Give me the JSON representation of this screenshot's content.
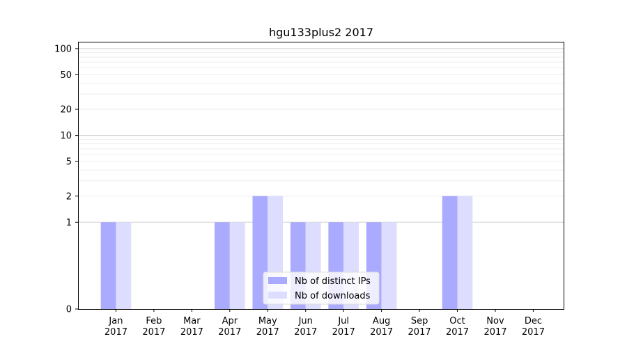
{
  "chart_data": {
    "type": "bar",
    "title": "hgu133plus2 2017",
    "xlabel": "",
    "ylabel": "",
    "y_scale": "symlog",
    "ylim": [
      0,
      120
    ],
    "categories": [
      {
        "month": "Jan",
        "year": "2017"
      },
      {
        "month": "Feb",
        "year": "2017"
      },
      {
        "month": "Mar",
        "year": "2017"
      },
      {
        "month": "Apr",
        "year": "2017"
      },
      {
        "month": "May",
        "year": "2017"
      },
      {
        "month": "Jun",
        "year": "2017"
      },
      {
        "month": "Jul",
        "year": "2017"
      },
      {
        "month": "Aug",
        "year": "2017"
      },
      {
        "month": "Sep",
        "year": "2017"
      },
      {
        "month": "Oct",
        "year": "2017"
      },
      {
        "month": "Nov",
        "year": "2017"
      },
      {
        "month": "Dec",
        "year": "2017"
      }
    ],
    "series": [
      {
        "name": "Nb of distinct IPs",
        "color": "#aaaaff",
        "values": [
          1,
          0,
          0,
          1,
          2,
          1,
          1,
          1,
          0,
          2,
          0,
          0
        ]
      },
      {
        "name": "Nb of downloads",
        "color": "#ddddff",
        "values": [
          1,
          0,
          0,
          1,
          2,
          1,
          1,
          1,
          0,
          2,
          0,
          0
        ]
      }
    ],
    "y_ticks": [
      {
        "value": 0,
        "label": "0"
      },
      {
        "value": 1,
        "label": "1"
      },
      {
        "value": 2,
        "label": "2"
      },
      {
        "value": 5,
        "label": "5"
      },
      {
        "value": 10,
        "label": "10"
      },
      {
        "value": 20,
        "label": "20"
      },
      {
        "value": 50,
        "label": "50"
      },
      {
        "value": 100,
        "label": "100"
      }
    ],
    "grid": true,
    "legend_position": "lower-center"
  }
}
